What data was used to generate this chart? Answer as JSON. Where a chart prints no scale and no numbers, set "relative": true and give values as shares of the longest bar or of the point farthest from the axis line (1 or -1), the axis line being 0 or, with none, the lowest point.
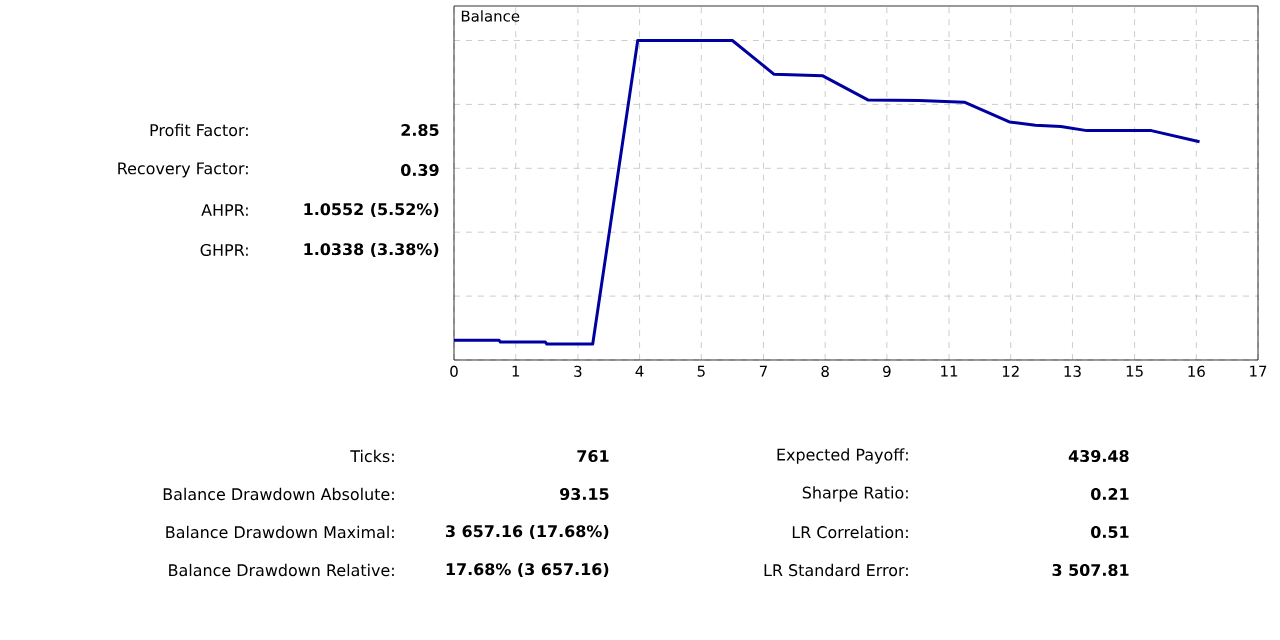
{
  "chart_data": [
    {
      "type": "line",
      "title": "Balance",
      "relative": true,
      "color": "#0000a0",
      "grid": true,
      "x": [
        0,
        0.97,
        1.0,
        1.97,
        2.0,
        2.99,
        3.96,
        6.0,
        6.9,
        7.94,
        8.92,
        10.03,
        11.0,
        11.97,
        12.53,
        13.08,
        13.64,
        15.03,
        16.07
      ],
      "values": [
        0.062,
        0.062,
        0.056,
        0.056,
        0.05,
        0.05,
        1.0,
        1.0,
        0.894,
        0.89,
        0.814,
        0.812,
        0.807,
        0.745,
        0.735,
        0.731,
        0.718,
        0.718,
        0.683
      ],
      "xlim": [
        0,
        17.33
      ],
      "xticks": [
        {
          "value": 0,
          "label": "0"
        },
        {
          "value": 1.33,
          "label": "1"
        },
        {
          "value": 2.67,
          "label": "3"
        },
        {
          "value": 4,
          "label": "4"
        },
        {
          "value": 5.33,
          "label": "5"
        },
        {
          "value": 6.67,
          "label": "7"
        },
        {
          "value": 8,
          "label": "8"
        },
        {
          "value": 9.33,
          "label": "9"
        },
        {
          "value": 10.67,
          "label": "11"
        },
        {
          "value": 12,
          "label": "12"
        },
        {
          "value": 13.33,
          "label": "13"
        },
        {
          "value": 14.67,
          "label": "15"
        },
        {
          "value": 16,
          "label": "16"
        },
        {
          "value": 17.33,
          "label": "17"
        }
      ]
    },
    {
      "type": "other",
      "annotations": [
        "Profit Factor:",
        "2.85",
        "Recovery Factor:",
        "0.39",
        "AHPR:",
        "1.0552 (5.52%)",
        "GHPR:",
        "1.0338 (3.38%)"
      ]
    },
    {
      "type": "other",
      "annotations": [
        "Ticks:",
        "761",
        "Balance Drawdown Absolute:",
        "93.15",
        "Balance Drawdown Maximal:",
        "3 657.16 (17.68%)",
        "Balance Drawdown Relative:",
        "17.68% (3 657.16)",
        "Expected Payoff:",
        "439.48",
        "Sharpe Ratio:",
        "0.21",
        "LR Correlation:",
        "0.51",
        "LR Standard Error:",
        "3 507.81"
      ]
    }
  ]
}
